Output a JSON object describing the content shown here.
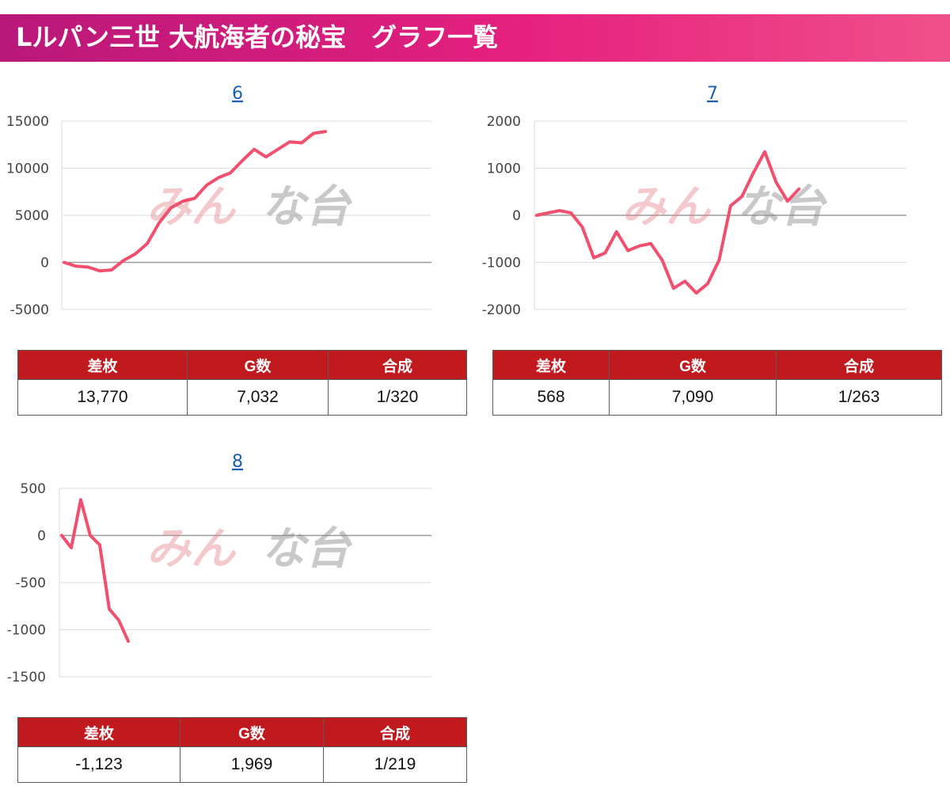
{
  "header": {
    "title": "Lルパン三世 大航海者の秘宝　グラフ一覧"
  },
  "watermark": {
    "text_left": "みん",
    "text_right": "な台"
  },
  "colors": {
    "line": "#f0506e",
    "header_cell": "#c01a1f",
    "grid": "#dddddd",
    "zero": "#9a9a9a",
    "link": "#1a5fb4"
  },
  "chart_data": [
    {
      "type": "line",
      "title": "6",
      "ylim": [
        -5000,
        15000
      ],
      "yticks": [
        15000,
        10000,
        5000,
        0,
        -5000
      ],
      "grid": true,
      "series": [
        {
          "values": [
            0,
            -400,
            -500,
            -900,
            -800,
            200,
            900,
            2000,
            4200,
            5800,
            6500,
            6800,
            8200,
            9000,
            9500,
            10800,
            12000,
            11200,
            12000,
            12800,
            12700,
            13700,
            13900
          ]
        }
      ]
    },
    {
      "type": "line",
      "title": "7",
      "ylim": [
        -2000,
        2000
      ],
      "yticks": [
        2000,
        1000,
        0,
        -1000,
        -2000
      ],
      "grid": true,
      "series": [
        {
          "values": [
            0,
            50,
            100,
            50,
            -250,
            -900,
            -800,
            -350,
            -750,
            -650,
            -600,
            -950,
            -1550,
            -1400,
            -1650,
            -1450,
            -950,
            200,
            400,
            900,
            1350,
            700,
            300,
            560
          ]
        }
      ]
    },
    {
      "type": "line",
      "title": "8",
      "ylim": [
        -1500,
        500
      ],
      "yticks": [
        500,
        0,
        -500,
        -1000,
        -1500
      ],
      "grid": true,
      "series": [
        {
          "values": [
            0,
            -130,
            380,
            0,
            -100,
            -780,
            -900,
            -1123
          ]
        }
      ]
    }
  ],
  "tables": [
    {
      "headers": [
        "差枚",
        "G数",
        "合成"
      ],
      "values": [
        "13,770",
        "7,032",
        "1/320"
      ]
    },
    {
      "headers": [
        "差枚",
        "G数",
        "合成"
      ],
      "values": [
        "568",
        "7,090",
        "1/263"
      ]
    },
    {
      "headers": [
        "差枚",
        "G数",
        "合成"
      ],
      "values": [
        "-1,123",
        "1,969",
        "1/219"
      ]
    }
  ]
}
